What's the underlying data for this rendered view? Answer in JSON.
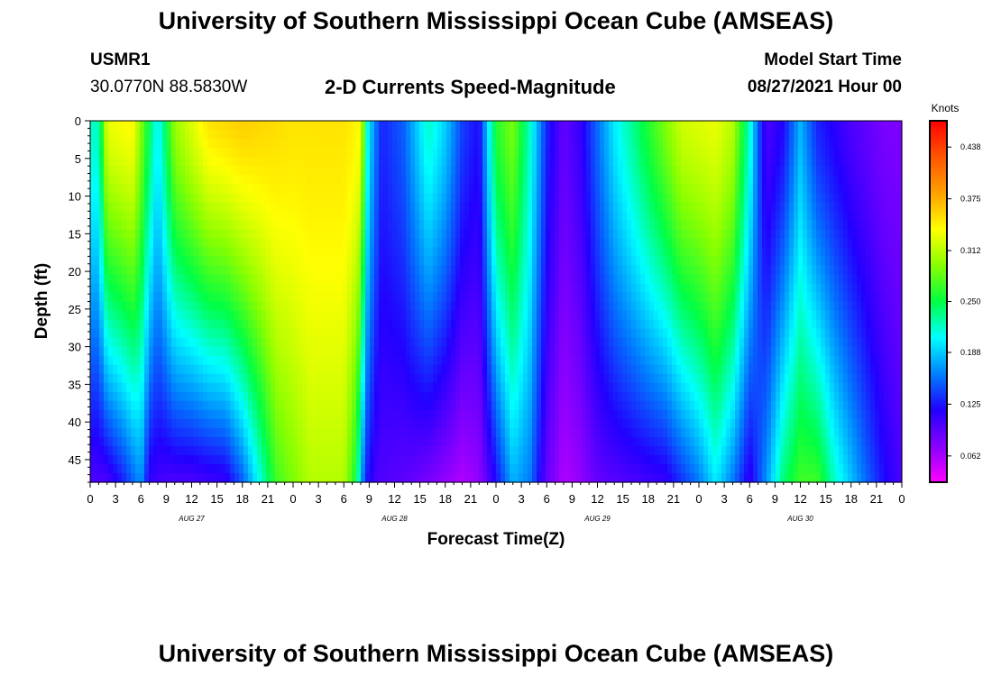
{
  "page": {
    "title_top": "University of Southern Mississippi Ocean Cube (AMSEAS)",
    "title_bottom": "University of Southern Mississippi Ocean Cube (AMSEAS)",
    "station": "USMR1",
    "coords": "30.0770N  88.5830W",
    "start_label": "Model Start Time",
    "start_value": "08/27/2021 Hour 00"
  },
  "chart_data": {
    "type": "heatmap",
    "title": "2-D Currents Speed-Magnitude",
    "xlabel": "Forecast Time(Z)",
    "ylabel": "Depth (ft)",
    "units": "Knots",
    "xlim": [
      0,
      96
    ],
    "ylim": [
      48,
      0
    ],
    "x_ticks": [
      "0",
      "3",
      "6",
      "9",
      "12",
      "15",
      "18",
      "21",
      "0",
      "3",
      "6",
      "9",
      "12",
      "15",
      "18",
      "21",
      "0",
      "3",
      "6",
      "9",
      "12",
      "15",
      "18",
      "21",
      "0",
      "3",
      "6",
      "9",
      "12",
      "15",
      "18",
      "21",
      "0"
    ],
    "day_labels": [
      {
        "label": "AUG 27",
        "hour": 12
      },
      {
        "label": "AUG 28",
        "hour": 36
      },
      {
        "label": "AUG 29",
        "hour": 60
      },
      {
        "label": "AUG 30",
        "hour": 84
      }
    ],
    "y_ticks": [
      "0",
      "5",
      "10",
      "15",
      "20",
      "25",
      "30",
      "35",
      "40",
      "45"
    ],
    "y_tick_values": [
      0,
      5,
      10,
      15,
      20,
      25,
      30,
      35,
      40,
      45
    ],
    "colorbar_ticks": [
      "0.438",
      "0.375",
      "0.312",
      "0.250",
      "0.188",
      "0.125",
      "0.062"
    ],
    "colorbar_values": [
      0.438,
      0.375,
      0.312,
      0.25,
      0.188,
      0.125,
      0.062
    ],
    "colorbar_range": [
      0.03,
      0.47
    ],
    "colors": [
      "#ff00ff",
      "#8800ff",
      "#2200ff",
      "#0080ff",
      "#00ffff",
      "#00ff44",
      "#88ff00",
      "#ffff00",
      "#ffa000",
      "#ff5500",
      "#ff0000"
    ],
    "surface_profile": [
      [
        0,
        0.22
      ],
      [
        1,
        0.22
      ],
      [
        2,
        0.33
      ],
      [
        5,
        0.34
      ],
      [
        8,
        0.2
      ],
      [
        10,
        0.3
      ],
      [
        14,
        0.35
      ],
      [
        18,
        0.36
      ],
      [
        24,
        0.35
      ],
      [
        30,
        0.35
      ],
      [
        32,
        0.34
      ],
      [
        32.7,
        0.22
      ],
      [
        33.5,
        0.17
      ],
      [
        34.5,
        0.13
      ],
      [
        37,
        0.15
      ],
      [
        40,
        0.22
      ],
      [
        42,
        0.19
      ],
      [
        44,
        0.14
      ],
      [
        46,
        0.12
      ],
      [
        48,
        0.26
      ],
      [
        50,
        0.29
      ],
      [
        52,
        0.22
      ],
      [
        54,
        0.13
      ],
      [
        56,
        0.09
      ],
      [
        58,
        0.11
      ],
      [
        62,
        0.2
      ],
      [
        66,
        0.26
      ],
      [
        70,
        0.32
      ],
      [
        74,
        0.33
      ],
      [
        76,
        0.31
      ],
      [
        78,
        0.22
      ],
      [
        79,
        0.15
      ],
      [
        80,
        0.1
      ],
      [
        82,
        0.12
      ],
      [
        84,
        0.18
      ],
      [
        86,
        0.13
      ],
      [
        90,
        0.1
      ],
      [
        94,
        0.08
      ],
      [
        96,
        0.08
      ]
    ],
    "bottom_profile": [
      [
        0,
        0.1
      ],
      [
        2,
        0.1
      ],
      [
        4,
        0.13
      ],
      [
        6,
        0.17
      ],
      [
        7,
        0.11
      ],
      [
        9,
        0.1
      ],
      [
        12,
        0.1
      ],
      [
        16,
        0.11
      ],
      [
        18,
        0.15
      ],
      [
        22,
        0.27
      ],
      [
        26,
        0.31
      ],
      [
        30,
        0.31
      ],
      [
        31.5,
        0.25
      ],
      [
        32.5,
        0.13
      ],
      [
        34,
        0.1
      ],
      [
        38,
        0.09
      ],
      [
        42,
        0.07
      ],
      [
        44,
        0.06
      ],
      [
        46,
        0.07
      ],
      [
        48,
        0.12
      ],
      [
        50,
        0.18
      ],
      [
        52,
        0.16
      ],
      [
        54,
        0.09
      ],
      [
        56,
        0.06
      ],
      [
        58,
        0.07
      ],
      [
        60,
        0.09
      ],
      [
        64,
        0.1
      ],
      [
        68,
        0.11
      ],
      [
        72,
        0.16
      ],
      [
        74,
        0.2
      ],
      [
        76,
        0.16
      ],
      [
        78,
        0.11
      ],
      [
        80,
        0.17
      ],
      [
        82,
        0.24
      ],
      [
        84,
        0.27
      ],
      [
        86,
        0.27
      ],
      [
        88,
        0.22
      ],
      [
        92,
        0.15
      ],
      [
        94,
        0.12
      ],
      [
        96,
        0.1
      ]
    ]
  }
}
